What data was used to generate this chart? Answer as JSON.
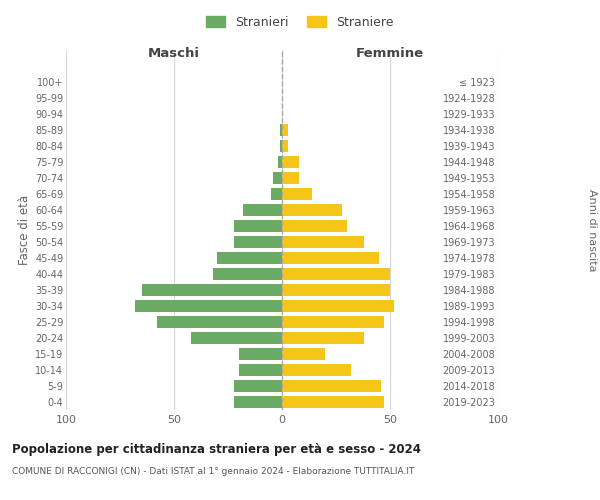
{
  "age_groups": [
    "0-4",
    "5-9",
    "10-14",
    "15-19",
    "20-24",
    "25-29",
    "30-34",
    "35-39",
    "40-44",
    "45-49",
    "50-54",
    "55-59",
    "60-64",
    "65-69",
    "70-74",
    "75-79",
    "80-84",
    "85-89",
    "90-94",
    "95-99",
    "100+"
  ],
  "birth_years": [
    "2019-2023",
    "2014-2018",
    "2009-2013",
    "2004-2008",
    "1999-2003",
    "1994-1998",
    "1989-1993",
    "1984-1988",
    "1979-1983",
    "1974-1978",
    "1969-1973",
    "1964-1968",
    "1959-1963",
    "1954-1958",
    "1949-1953",
    "1944-1948",
    "1939-1943",
    "1934-1938",
    "1929-1933",
    "1924-1928",
    "≤ 1923"
  ],
  "maschi": [
    22,
    22,
    20,
    20,
    42,
    58,
    68,
    65,
    32,
    30,
    22,
    22,
    18,
    5,
    4,
    2,
    1,
    1,
    0,
    0,
    0
  ],
  "femmine": [
    47,
    46,
    32,
    20,
    38,
    47,
    52,
    50,
    50,
    45,
    38,
    30,
    28,
    14,
    8,
    8,
    3,
    3,
    0,
    0,
    0
  ],
  "male_color": "#6aaa64",
  "female_color": "#f5c518",
  "male_label": "Stranieri",
  "female_label": "Straniere",
  "header_left": "Maschi",
  "header_right": "Femmine",
  "ylabel_left": "Fasce di età",
  "ylabel_right": "Anni di nascita",
  "title": "Popolazione per cittadinanza straniera per età e sesso - 2024",
  "subtitle": "COMUNE DI RACCONIGI (CN) - Dati ISTAT al 1° gennaio 2024 - Elaborazione TUTTITALIA.IT",
  "xlim": 100,
  "background_color": "#ffffff",
  "grid_color": "#d8d8d8"
}
